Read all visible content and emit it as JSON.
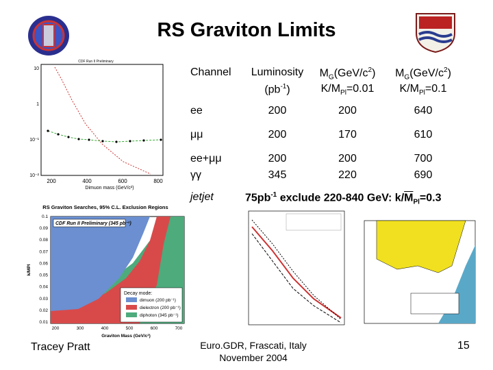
{
  "header": {
    "title": "RS Graviton Limits"
  },
  "table": {
    "header": [
      [
        [
          {
            "text": "Channel"
          }
        ]
      ],
      [
        [
          {
            "text": "Luminosity"
          }
        ],
        [
          {
            "text": "(pb"
          },
          {
            "sup": "-1"
          },
          {
            "text": ")"
          }
        ]
      ],
      [
        [
          {
            "text": "M"
          },
          {
            "sub": "G"
          },
          {
            "text": "(GeV/c"
          },
          {
            "sup": "2"
          },
          {
            "text": ")"
          }
        ],
        [
          {
            "text": "K/M"
          },
          {
            "sub": "Pl"
          },
          {
            "text": "=0.01"
          }
        ]
      ],
      [
        [
          {
            "text": "M"
          },
          {
            "sub": "G"
          },
          {
            "text": "(GeV/c"
          },
          {
            "sup": "2"
          },
          {
            "text": ")"
          }
        ],
        [
          {
            "text": "K/M"
          },
          {
            "sub": "Pl"
          },
          {
            "text": "=0.1"
          }
        ]
      ]
    ],
    "rows": [
      [
        "ee",
        "200",
        "200",
        "640"
      ],
      [
        "μμ",
        "200",
        "170",
        "610"
      ],
      [
        "ee+μμ",
        "200",
        "200",
        "700"
      ],
      [
        "γγ",
        "345",
        "220",
        "690"
      ]
    ],
    "jetjet": {
      "channel": "jetjet",
      "note": [
        {
          "text": "75pb"
        },
        {
          "sup": "-1"
        },
        {
          "text": " exclude 220-840 GeV: k/"
        },
        {
          "over": "M"
        },
        {
          "sub": "Pl"
        },
        {
          "text": "=0.3"
        }
      ]
    }
  },
  "plot_top_left": {
    "xlabel": "Dimuon mass (GeV/c²)",
    "xticks": [
      "200",
      "400",
      "600",
      "800"
    ],
    "yticks": [
      "10",
      "1",
      "10⁻¹",
      "10⁻²"
    ]
  },
  "plot_bottom_left": {
    "title": "RS Graviton Searches, 95% C.L. Exclusion Regions",
    "box": "CDF Run II Preliminary (345 pb⁻¹)",
    "ylabel": "k/MPl",
    "xlabel": "Graviton Mass (GeV/c²)",
    "yticks": [
      "0.1",
      "0.09",
      "0.08",
      "0.07",
      "0.06",
      "0.05",
      "0.04",
      "0.03",
      "0.02",
      "0.01"
    ],
    "xticks": [
      "200",
      "300",
      "400",
      "500",
      "600",
      "700"
    ],
    "legend_title": "Decay mode:",
    "legend": [
      "dimuon (200 pb⁻¹)",
      "dielectron (200 pb⁻¹)",
      "diphoton (345 pb⁻¹)"
    ]
  },
  "footer": {
    "author": "Tracey Pratt",
    "venue": "Euro.GDR, Frascati, Italy",
    "date": "November 2004",
    "page": "15"
  }
}
